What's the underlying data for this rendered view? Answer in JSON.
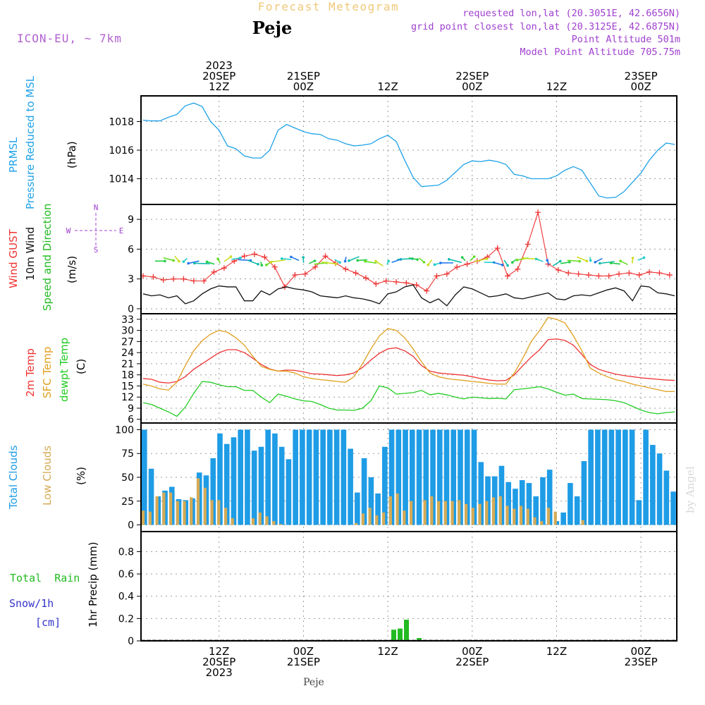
{
  "header": {
    "title": "Forecast Meteogram",
    "location": "Peje",
    "model": "ICON-EU, ~ 7km",
    "info_lines": [
      "requested lon,lat (20.3051E, 42.6656N)",
      "grid point closest lon,lat (20.3125E, 42.6875N)",
      "Point Altitude 501m",
      "Model Point Altitude 705.75m"
    ],
    "footer_location": "Peje",
    "watermark": "by Angel"
  },
  "time_axis": {
    "n": 64,
    "top_labels": [
      {
        "i": 9,
        "lines": [
          "2023",
          "20SEP",
          "12Z"
        ]
      },
      {
        "i": 19,
        "lines": [
          "21SEP",
          "00Z"
        ]
      },
      {
        "i": 29,
        "lines": [
          "12Z"
        ]
      },
      {
        "i": 39,
        "lines": [
          "22SEP",
          "00Z"
        ]
      },
      {
        "i": 49,
        "lines": [
          "12Z"
        ]
      },
      {
        "i": 59,
        "lines": [
          "23SEP",
          "00Z"
        ]
      }
    ],
    "bottom_labels": [
      {
        "i": 9,
        "lines": [
          "12Z",
          "20SEP",
          "2023"
        ]
      },
      {
        "i": 19,
        "lines": [
          "00Z",
          "21SEP"
        ]
      },
      {
        "i": 29,
        "lines": [
          "12Z"
        ]
      },
      {
        "i": 39,
        "lines": [
          "00Z",
          "22SEP"
        ]
      },
      {
        "i": 49,
        "lines": [
          "12Z"
        ]
      },
      {
        "i": 59,
        "lines": [
          "00Z",
          "23SEP"
        ]
      }
    ]
  },
  "panel_labels": {
    "pressure": {
      "name1": "PRMSL",
      "name2": "Pressure Reduced to MSL",
      "unit": "(hPa)"
    },
    "wind": {
      "gust": "Wind GUST",
      "w10": "10m Wind",
      "dir": "Speed and Direction",
      "unit": "(m/s)",
      "compass": {
        "n": "N",
        "s": "S",
        "e": "E",
        "w": "W"
      }
    },
    "temp": {
      "t2m": "2m Temp",
      "sfc": "SFC Temp",
      "dew": "dewpt Temp",
      "unit": "(C)"
    },
    "clouds": {
      "total": "Total Clouds",
      "low": "Low Clouds",
      "unit": "(%)"
    },
    "precip": {
      "rain": "Total  Rain",
      "snow": "Snow/1h",
      "snow_unit": "[cm]",
      "axis": "1hr Precip (mm)"
    }
  },
  "chart_data": [
    {
      "id": "pressure",
      "type": "line",
      "ylabel": "(hPa)",
      "yticks": [
        1014,
        1016,
        1018
      ],
      "ylim": [
        1012.2,
        1019.8
      ],
      "grid": true,
      "series": [
        {
          "name": "PRMSL",
          "color": "#1fa2e8",
          "values": [
            1018.1,
            1018.05,
            1018.05,
            1018.3,
            1018.5,
            1019.1,
            1019.3,
            1019.05,
            1018.0,
            1017.4,
            1016.3,
            1016.1,
            1015.6,
            1015.45,
            1015.45,
            1016.0,
            1017.4,
            1017.8,
            1017.55,
            1017.3,
            1017.15,
            1017.1,
            1016.8,
            1016.7,
            1016.45,
            1016.3,
            1016.35,
            1016.45,
            1016.8,
            1017.05,
            1016.6,
            1015.3,
            1014.1,
            1013.45,
            1013.5,
            1013.55,
            1013.9,
            1014.45,
            1015.0,
            1015.25,
            1015.2,
            1015.3,
            1015.2,
            1015.0,
            1014.3,
            1014.2,
            1014.0,
            1014.0,
            1014.0,
            1014.2,
            1014.6,
            1014.85,
            1014.6,
            1013.7,
            1012.8,
            1012.65,
            1012.7,
            1013.1,
            1013.75,
            1014.4,
            1015.3,
            1016.0,
            1016.5,
            1016.4
          ]
        }
      ]
    },
    {
      "id": "wind",
      "type": "line",
      "ylabel": "(m/s)",
      "yticks": [
        0,
        3,
        6,
        9
      ],
      "ylim": [
        -0.5,
        10.5
      ],
      "grid": true,
      "series": [
        {
          "name": "Wind GUST",
          "color": "#ee3333",
          "values": [
            3.3,
            3.2,
            2.9,
            3.0,
            3.0,
            2.8,
            2.8,
            3.7,
            4.1,
            4.8,
            5.3,
            5.5,
            5.2,
            4.2,
            2.2,
            3.4,
            3.5,
            4.2,
            5.3,
            4.6,
            4.0,
            3.6,
            3.1,
            2.5,
            2.8,
            2.7,
            2.6,
            2.4,
            1.8,
            3.3,
            3.5,
            4.2,
            4.5,
            4.8,
            5.2,
            6.1,
            3.3,
            4.0,
            6.5,
            9.7,
            4.5,
            3.9,
            3.6,
            3.5,
            3.4,
            3.3,
            3.3,
            3.5,
            3.6,
            3.4,
            3.7,
            3.6,
            3.4
          ]
        },
        {
          "name": "10m Wind",
          "color": "#111111",
          "values": [
            1.5,
            1.3,
            1.4,
            1.1,
            1.3,
            0.5,
            0.8,
            1.5,
            2.0,
            2.3,
            2.2,
            2.2,
            0.8,
            0.8,
            1.8,
            1.4,
            2.0,
            2.2,
            2.0,
            1.9,
            1.7,
            1.3,
            1.2,
            1.1,
            1.3,
            1.1,
            1.0,
            0.8,
            0.5,
            1.5,
            1.7,
            2.2,
            2.4,
            1.1,
            0.6,
            1.0,
            0.3,
            1.4,
            2.2,
            2.0,
            1.6,
            1.2,
            1.3,
            1.5,
            1.1,
            1.0,
            1.2,
            1.4,
            1.6,
            1.0,
            0.9,
            1.3,
            1.4,
            1.3,
            1.6,
            1.9,
            2.1,
            1.8,
            0.8,
            2.3,
            2.2,
            1.6,
            1.5,
            1.3
          ]
        }
      ]
    },
    {
      "id": "temperature",
      "type": "line",
      "ylabel": "(C)",
      "yticks": [
        6,
        9,
        12,
        15,
        18,
        21,
        24,
        27,
        30,
        33
      ],
      "ylim": [
        5.0,
        34.5
      ],
      "grid": true,
      "series": [
        {
          "name": "2m Temp",
          "color": "#ee3333",
          "values": [
            17.0,
            16.8,
            16.0,
            15.8,
            16.2,
            17.5,
            19.5,
            21.0,
            22.5,
            24.0,
            24.8,
            24.8,
            24.0,
            22.5,
            20.8,
            19.6,
            19.0,
            19.3,
            19.2,
            18.8,
            18.3,
            18.2,
            18.0,
            17.8,
            18.0,
            18.5,
            20.0,
            22.0,
            23.8,
            25.0,
            25.3,
            24.5,
            23.0,
            20.5,
            19.0,
            18.5,
            18.3,
            18.1,
            17.9,
            17.5,
            17.0,
            16.6,
            16.4,
            16.5,
            18.0,
            20.5,
            22.8,
            24.8,
            27.5,
            27.7,
            27.3,
            26.0,
            23.5,
            20.8,
            19.5,
            18.8,
            18.2,
            17.8,
            17.5,
            17.2,
            17.0,
            16.8,
            16.6,
            16.5
          ]
        },
        {
          "name": "SFC Temp",
          "color": "#e0a020",
          "values": [
            15.5,
            15.0,
            14.2,
            13.9,
            16.0,
            20.5,
            24.5,
            27.2,
            29.0,
            30.0,
            29.5,
            28.0,
            26.0,
            23.0,
            20.3,
            19.5,
            19.0,
            19.0,
            18.5,
            17.5,
            17.0,
            16.7,
            16.5,
            16.2,
            16.0,
            17.5,
            21.0,
            25.0,
            28.5,
            30.5,
            30.0,
            28.0,
            25.0,
            21.5,
            18.5,
            17.5,
            17.0,
            16.7,
            16.5,
            16.2,
            16.0,
            15.7,
            15.5,
            15.5,
            18.5,
            22.5,
            27.0,
            30.0,
            33.5,
            33.0,
            32.0,
            28.5,
            24.5,
            19.8,
            18.5,
            17.5,
            16.7,
            16.2,
            15.5,
            15.0,
            14.5,
            14.0,
            13.5,
            13.5
          ]
        },
        {
          "name": "dewpt Temp",
          "color": "#22cc22",
          "values": [
            10.5,
            10.0,
            9.0,
            8.0,
            6.8,
            9.3,
            13.0,
            16.2,
            16.0,
            15.3,
            14.8,
            14.8,
            13.8,
            13.8,
            12.0,
            10.5,
            12.8,
            12.2,
            11.5,
            11.0,
            10.8,
            10.0,
            9.0,
            8.5,
            8.5,
            8.4,
            9.0,
            11.0,
            15.0,
            14.5,
            12.8,
            13.0,
            13.2,
            13.8,
            12.6,
            13.0,
            12.6,
            12.0,
            11.5,
            12.0,
            11.8,
            11.6,
            11.7,
            11.5,
            14.0,
            14.2,
            14.5,
            14.8,
            14.2,
            13.3,
            12.5,
            12.8,
            11.6,
            11.5,
            11.4,
            11.3,
            11.0,
            10.5,
            9.5,
            8.5,
            7.8,
            7.5,
            7.8,
            8.0
          ]
        }
      ]
    },
    {
      "id": "clouds",
      "type": "bar",
      "ylabel": "(%)",
      "yticks": [
        0,
        25,
        50,
        75,
        100
      ],
      "ylim": [
        -7,
        107
      ],
      "grid": true,
      "series": [
        {
          "name": "Total Clouds",
          "color": "#1e9ce6",
          "values": [
            100,
            59,
            30,
            36,
            40,
            27,
            26,
            28,
            55,
            52,
            70,
            96,
            85,
            92,
            100,
            100,
            78,
            82,
            100,
            96,
            82,
            69,
            100,
            100,
            100,
            100,
            100,
            100,
            100,
            100,
            80,
            34,
            70,
            50,
            33,
            82,
            100,
            100,
            100,
            100,
            100,
            100,
            100,
            100,
            100,
            100,
            100,
            100,
            100,
            66,
            51,
            51,
            62,
            45,
            38,
            47,
            44,
            30,
            50,
            58,
            4,
            13,
            44,
            30,
            67,
            100,
            100,
            100,
            100,
            100,
            100,
            100,
            26,
            100,
            84,
            75,
            57,
            35
          ]
        },
        {
          "name": "Low Clouds",
          "color": "#d4aa55",
          "values": [
            15,
            14,
            30,
            34,
            34,
            25,
            25,
            29,
            49,
            39,
            26,
            26,
            18,
            7,
            0,
            0,
            7,
            13,
            9,
            4,
            1,
            0,
            0,
            0,
            0,
            0,
            0,
            0,
            0,
            0,
            0,
            2,
            12,
            18,
            10,
            13,
            30,
            33,
            15,
            25,
            0,
            26,
            30,
            25,
            25,
            25,
            26,
            22,
            18,
            22,
            25,
            29,
            30,
            20,
            17,
            20,
            17,
            8,
            4,
            18,
            14,
            0,
            0,
            0,
            5,
            0,
            0,
            0,
            0,
            0,
            0,
            0,
            0,
            0,
            0,
            0,
            0,
            0
          ]
        }
      ]
    },
    {
      "id": "precip",
      "type": "bar",
      "ylabel": "1hr Precip (mm)",
      "yticks": [
        0,
        0.2,
        0.4,
        0.6,
        0.8
      ],
      "ylim": [
        0,
        0.98
      ],
      "grid": true,
      "series": [
        {
          "name": "Total Rain",
          "color": "#22bb22",
          "values": [
            0.1,
            0.11,
            0.19,
            0.0,
            0.025
          ]
        }
      ]
    }
  ],
  "colors": {
    "frame": "#000000",
    "grid": "#9a9a9a",
    "title": "#f0c878",
    "model": "#b060d0",
    "info": "#a040d0",
    "pressure": "#1fa2e8",
    "gust": "#ee3333",
    "wind10": "#111111",
    "dir_green": "#22bb22",
    "temp2m": "#ee3333",
    "sfc": "#e0a020",
    "dew": "#22cc22",
    "total_clouds": "#1e9ce6",
    "low_clouds": "#d4aa55",
    "rain": "#22bb22",
    "snow": "#3333cc",
    "watermark": "#dddddd"
  }
}
